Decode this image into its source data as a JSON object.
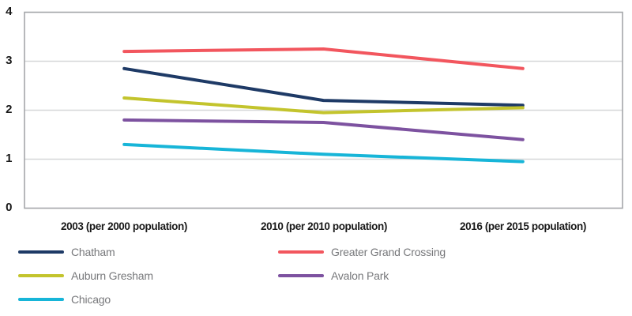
{
  "chart_data": {
    "type": "line",
    "title": "",
    "xlabel": "",
    "ylabel": "",
    "categories": [
      "2003 (per 2000 population)",
      "2010 (per 2010 population)",
      "2016 (per 2015 population)"
    ],
    "series": [
      {
        "name": "Chatham",
        "color": "#1e3a66",
        "values": [
          2.85,
          2.2,
          2.1
        ]
      },
      {
        "name": "Greater Grand Crossing",
        "color": "#f2565e",
        "values": [
          3.2,
          3.25,
          2.85
        ]
      },
      {
        "name": "Auburn Gresham",
        "color": "#c3c42d",
        "values": [
          2.25,
          1.95,
          2.05
        ]
      },
      {
        "name": "Avalon Park",
        "color": "#7d52a0",
        "values": [
          1.8,
          1.75,
          1.4
        ]
      },
      {
        "name": "Chicago",
        "color": "#17b5d8",
        "values": [
          1.3,
          1.1,
          0.95
        ]
      }
    ],
    "ylim": [
      0,
      4
    ],
    "y_ticks": [
      "0",
      "1",
      "2",
      "3",
      "4"
    ],
    "grid": "horizontal-only",
    "plot_border": true,
    "legend_position": "bottom-two-columns"
  },
  "legend": {
    "columns": [
      {
        "items": [
          {
            "label": "Chatham",
            "color": "#1e3a66"
          },
          {
            "label": "Auburn Gresham",
            "color": "#c3c42d"
          },
          {
            "label": "Chicago",
            "color": "#17b5d8"
          }
        ]
      },
      {
        "items": [
          {
            "label": "Greater Grand Crossing",
            "color": "#f2565e"
          },
          {
            "label": "Avalon Park",
            "color": "#7d52a0"
          }
        ]
      }
    ]
  },
  "colors": {
    "background": "#ffffff",
    "axis_border": "#a5a7aa",
    "gridline": "#d6d7d8",
    "tick_text": "#191919",
    "legend_text": "#77787b"
  }
}
